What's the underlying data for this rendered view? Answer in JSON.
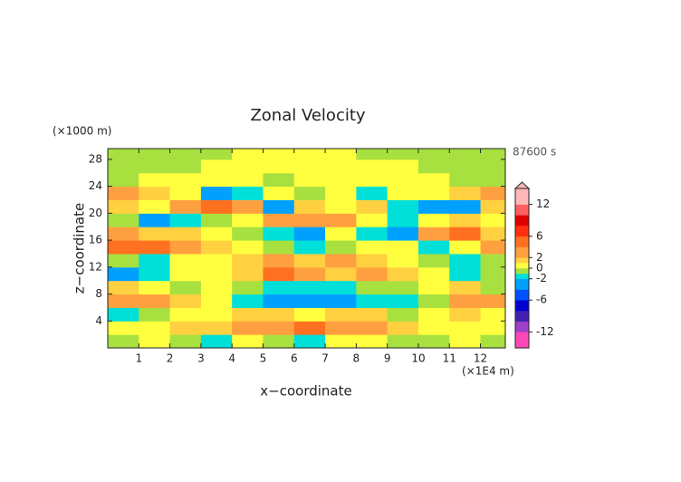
{
  "chart_data": {
    "type": "contour",
    "title": "Zonal Velocity",
    "time_label": "87600 s",
    "x_label": "x−coordinate",
    "y_label": "z−coordinate",
    "x_unit": "(×1E4 m)",
    "y_unit": "(×1000 m)",
    "xlim": [
      0,
      12.8
    ],
    "ylim": [
      0,
      29.6
    ],
    "xticks": [
      1,
      2,
      3,
      4,
      5,
      6,
      7,
      8,
      9,
      10,
      11,
      12
    ],
    "yticks": [
      4,
      8,
      12,
      16,
      20,
      24,
      28
    ],
    "field": {
      "x": [
        0.5,
        1.5,
        2.5,
        3.5,
        4.5,
        5.5,
        6.5,
        7.5,
        8.5,
        9.5,
        10.5,
        11.5,
        12.5
      ],
      "z": [
        1,
        3,
        5,
        7,
        9,
        11,
        13,
        15,
        17,
        19,
        21,
        23,
        25,
        27,
        29
      ],
      "values": [
        [
          -0.5,
          0.5,
          -0.5,
          -1.5,
          0.5,
          -0.5,
          -1.5,
          0.5,
          0.5,
          -0.5,
          -0.5,
          0.5,
          -0.5
        ],
        [
          0.5,
          0.5,
          1.5,
          1.5,
          3,
          3,
          5,
          3,
          3,
          1.5,
          0.5,
          0.5,
          0.5
        ],
        [
          -1.5,
          -0.5,
          0.5,
          0.5,
          1.5,
          1.5,
          0.5,
          1.5,
          1.5,
          -0.5,
          0.5,
          1.5,
          0.5
        ],
        [
          3,
          3,
          1.5,
          0.5,
          -2,
          -3,
          -4,
          -3,
          -2,
          -1.5,
          -0.5,
          3,
          3
        ],
        [
          1.5,
          0.5,
          -0.5,
          0.5,
          -0.5,
          -1.5,
          -2,
          -1.5,
          -0.5,
          -0.5,
          0.5,
          1.5,
          -0.5
        ],
        [
          -3,
          -2,
          0.5,
          0.5,
          1.5,
          4,
          3,
          1.5,
          3,
          1.5,
          0.5,
          -1.5,
          -0.5
        ],
        [
          -0.5,
          -1.5,
          0.5,
          0.5,
          1.5,
          3,
          1.5,
          3,
          1.5,
          0.5,
          -0.5,
          -1.5,
          -0.5
        ],
        [
          5,
          5,
          3,
          1.5,
          0.5,
          -0.5,
          -1.5,
          -0.5,
          0.5,
          0.5,
          -1.5,
          0.5,
          3
        ],
        [
          3,
          1.5,
          1.5,
          0.5,
          -0.5,
          -1.5,
          -3,
          0.5,
          -1.5,
          -3,
          3,
          5,
          1.5
        ],
        [
          -0.5,
          -3,
          -1.5,
          -0.5,
          0.5,
          3,
          3,
          3,
          0.5,
          -2,
          0.5,
          1.5,
          0.5
        ],
        [
          1.5,
          0.5,
          3,
          5,
          3,
          -3,
          1.5,
          0.5,
          1.5,
          -1.5,
          -3,
          -3,
          1.5
        ],
        [
          3,
          1.5,
          0.5,
          -3,
          -2,
          0.5,
          -0.5,
          0.5,
          -2,
          0.5,
          0.5,
          1.5,
          3
        ],
        [
          -0.5,
          0.5,
          0.5,
          0.5,
          0.5,
          -0.5,
          0.5,
          0.5,
          0.5,
          0.5,
          0.5,
          -0.5,
          -0.5
        ],
        [
          -0.5,
          -0.5,
          -0.5,
          0.5,
          0.5,
          0.5,
          0.5,
          0.5,
          0.5,
          0.5,
          -0.5,
          -0.5,
          -0.5
        ],
        [
          -0.5,
          -0.5,
          -0.5,
          -0.5,
          0.5,
          0.5,
          0.5,
          0.5,
          -0.5,
          -0.5,
          -0.5,
          -0.5,
          -0.5
        ]
      ]
    },
    "colorbar": {
      "clim": [
        -15,
        15
      ],
      "levels": [
        -15,
        -12,
        -10,
        -8,
        -6,
        -4,
        -2,
        -1,
        0,
        1,
        2,
        4,
        6,
        8,
        10,
        12,
        15
      ],
      "colors": [
        "#ff48b8",
        "#a040c8",
        "#4020b0",
        "#0000d0",
        "#0050ff",
        "#00a0ff",
        "#00e0d8",
        "#a8e040",
        "#ffff40",
        "#ffd040",
        "#ffa040",
        "#ff7020",
        "#ff3010",
        "#e00000",
        "#ff6060",
        "#ffb8b8"
      ],
      "ticks": [
        12,
        6,
        2,
        0,
        -2,
        -6,
        -12
      ]
    }
  }
}
